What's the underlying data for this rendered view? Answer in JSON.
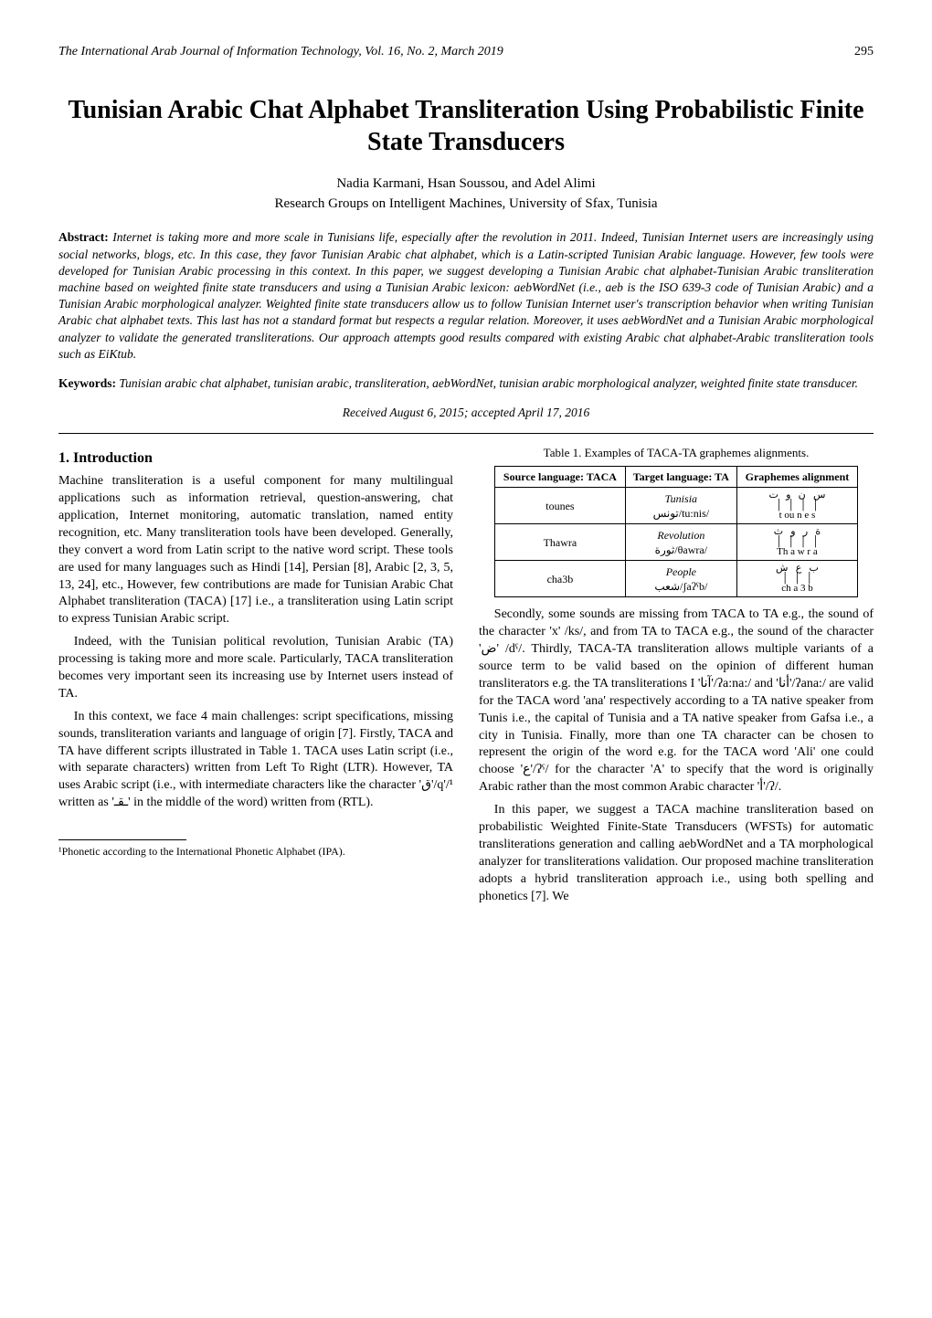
{
  "header": {
    "journal": "The International Arab Journal of Information Technology, Vol. 16, No. 2, March 2019",
    "page_number": "295"
  },
  "title": "Tunisian Arabic Chat Alphabet Transliteration Using Probabilistic Finite State Transducers",
  "authors": "Nadia Karmani, Hsan Soussou, and Adel Alimi",
  "affiliation": "Research Groups on Intelligent Machines, University of Sfax, Tunisia",
  "abstract": {
    "label": "Abstract:",
    "text": "Internet is taking more and more scale in Tunisians life, especially after the revolution in 2011. Indeed, Tunisian Internet users are increasingly using social networks, blogs, etc. In this case, they favor Tunisian Arabic chat alphabet, which is a Latin-scripted Tunisian Arabic language. However, few tools were developed for Tunisian Arabic processing in this context. In this paper, we suggest developing a Tunisian Arabic chat alphabet-Tunisian Arabic transliteration machine based on weighted finite state transducers and using a Tunisian Arabic lexicon: aebWordNet (i.e., aeb is the ISO 639-3 code of Tunisian Arabic) and a Tunisian Arabic morphological analyzer. Weighted finite state transducers allow us to follow Tunisian Internet user's transcription behavior when writing Tunisian Arabic chat alphabet texts. This last has not a standard format but respects a regular relation. Moreover, it uses aebWordNet and a Tunisian Arabic morphological analyzer to validate the generated transliterations. Our approach attempts good results compared with existing Arabic chat alphabet-Arabic transliteration tools such as EiKtub."
  },
  "keywords": {
    "label": "Keywords:",
    "text": "Tunisian arabic chat alphabet, tunisian arabic, transliteration, aebWordNet, tunisian arabic morphological analyzer, weighted finite state transducer."
  },
  "received": "Received August 6, 2015; accepted April 17, 2016",
  "section1": {
    "heading": "1. Introduction",
    "p1": "Machine transliteration is a useful component for many multilingual applications such as information retrieval, question-answering, chat application, Internet monitoring, automatic translation, named entity recognition, etc. Many transliteration tools have been developed. Generally, they convert a word from Latin script to the native word script. These tools are used for many languages such as Hindi [14], Persian [8], Arabic [2, 3, 5, 13, 24], etc., However, few contributions are made for Tunisian Arabic Chat Alphabet transliteration (TACA) [17] i.e., a transliteration using Latin script to express Tunisian Arabic script.",
    "p2": "Indeed, with the Tunisian political revolution, Tunisian Arabic (TA) processing is taking more and more scale. Particularly, TACA transliteration becomes very important seen its increasing use by Internet users instead of TA.",
    "p3": "In this context, we face 4 main challenges: script specifications, missing sounds, transliteration variants and language of origin [7]. Firstly, TACA and TA have different scripts illustrated in Table 1. TACA uses Latin script (i.e., with separate characters) written from Left To Right (LTR). However, TA uses Arabic script (i.e., with intermediate characters like the character 'ق'/q'/¹ written as 'ـقـ' in the middle of the word) written from (RTL)."
  },
  "table1": {
    "caption": "Table 1. Examples of TACA-TA graphemes alignments.",
    "headers": [
      "Source language: TACA",
      "Target language: TA",
      "Graphemes alignment"
    ],
    "rows": [
      {
        "src": "tounes",
        "tgt_top": "Tunisia",
        "tgt_bot": "تونس/tu:nis/",
        "align": "س   ن   و   ت\n│  │  │  │\nt ou n e s"
      },
      {
        "src": "Thawra",
        "tgt_top": "Revolution",
        "tgt_bot": "ثورة/θawra/",
        "align": "ة   ر   و   ث\n│  │  │  │\nTh a w r a"
      },
      {
        "src": "cha3b",
        "tgt_top": "People",
        "tgt_bot": "شعب/ʃaʔˁb/",
        "align": "ب   ع   ش\n│  │  │\nch a 3 b"
      }
    ]
  },
  "rightcol": {
    "p1": "Secondly, some sounds are missing from TACA to TA e.g., the sound of the character 'x' /ks/, and from TA to TACA e.g., the sound of the character 'ض' /dˁ/. Thirdly, TACA-TA transliteration allows multiple variants of a source term to be valid based on the opinion of different human transliterators e.g. the TA transliterations I 'آنا'/ʔa:na:/ and 'أنا'/ʔana:/ are valid for the TACA word 'ana' respectively according to a TA native speaker from Tunis i.e., the capital of Tunisia and a TA native speaker from Gafsa i.e., a city in Tunisia. Finally, more than one TA character can be chosen to represent the origin of the word e.g. for the TACA word 'Ali' one could choose 'ع'/ʔˁ/ for the character 'A' to specify that the word is originally Arabic rather than the most common Arabic character 'أ'/ʔ/.",
    "p2": "In this paper, we suggest a TACA machine transliteration based on probabilistic Weighted Finite-State Transducers (WFSTs) for automatic transliterations generation and calling aebWordNet and a TA morphological analyzer for transliterations validation. Our proposed machine transliteration adopts a hybrid transliteration approach i.e., using both spelling and phonetics [7]. We"
  },
  "footnote": "¹Phonetic according to the International Phonetic Alphabet (IPA)."
}
